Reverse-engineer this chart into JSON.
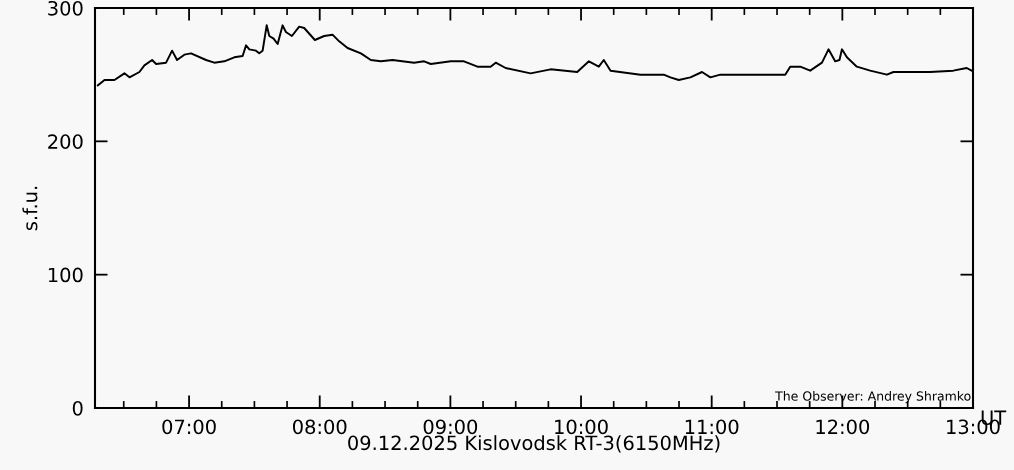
{
  "chart_data": {
    "type": "line",
    "xlabel": "09.12.2025 Kislovodsk RT-3(6150MHz)",
    "ylabel": "s.f.u.",
    "annotations": [
      "UT",
      "The Observer: Andrey Shramko"
    ],
    "xlim": [
      6.28,
      13
    ],
    "ylim": [
      0,
      300
    ],
    "xticks": [
      {
        "value": 6.5,
        "label": null
      },
      {
        "value": 6.75,
        "label": null
      },
      {
        "value": 7,
        "label": "07:00"
      },
      {
        "value": 7.25,
        "label": null
      },
      {
        "value": 7.5,
        "label": null
      },
      {
        "value": 7.75,
        "label": null
      },
      {
        "value": 8,
        "label": "08:00"
      },
      {
        "value": 8.25,
        "label": null
      },
      {
        "value": 8.5,
        "label": null
      },
      {
        "value": 8.75,
        "label": null
      },
      {
        "value": 9,
        "label": "09:00"
      },
      {
        "value": 9.25,
        "label": null
      },
      {
        "value": 9.5,
        "label": null
      },
      {
        "value": 9.75,
        "label": null
      },
      {
        "value": 10,
        "label": "10:00"
      },
      {
        "value": 10.25,
        "label": null
      },
      {
        "value": 10.5,
        "label": null
      },
      {
        "value": 10.75,
        "label": null
      },
      {
        "value": 11,
        "label": "11:00"
      },
      {
        "value": 11.25,
        "label": null
      },
      {
        "value": 11.5,
        "label": null
      },
      {
        "value": 11.75,
        "label": null
      },
      {
        "value": 12,
        "label": "12:00"
      },
      {
        "value": 12.25,
        "label": null
      },
      {
        "value": 12.5,
        "label": null
      },
      {
        "value": 12.75,
        "label": null
      },
      {
        "value": 13,
        "label": "13:00"
      }
    ],
    "yticks": [
      0,
      100,
      200,
      300
    ],
    "grid": false,
    "legend": false,
    "marker": "none",
    "line_style": "solid",
    "series": [
      {
        "color": "#000000",
        "x": [
          6.302,
          6.353,
          6.429,
          6.505,
          6.544,
          6.62,
          6.658,
          6.717,
          6.748,
          6.824,
          6.87,
          6.908,
          6.964,
          7.015,
          7.13,
          7.193,
          7.27,
          7.346,
          7.41,
          7.436,
          7.461,
          7.512,
          7.537,
          7.563,
          7.594,
          7.614,
          7.647,
          7.678,
          7.716,
          7.741,
          7.787,
          7.843,
          7.881,
          7.963,
          8.034,
          8.098,
          8.149,
          8.213,
          8.315,
          8.391,
          8.468,
          8.557,
          8.722,
          8.799,
          8.85,
          9.003,
          9.104,
          9.207,
          9.308,
          9.347,
          9.423,
          9.614,
          9.767,
          9.971,
          10.06,
          10.136,
          10.174,
          10.226,
          10.455,
          10.633,
          10.684,
          10.748,
          10.837,
          10.926,
          10.99,
          11.066,
          11.321,
          11.563,
          11.601,
          11.678,
          11.754,
          11.844,
          11.894,
          11.945,
          11.978,
          11.997,
          12.035,
          12.111,
          12.213,
          12.341,
          12.391,
          12.671,
          12.849,
          12.952,
          12.99
        ],
        "values": [
          242,
          246,
          246,
          251,
          248,
          252,
          257,
          261,
          258,
          259,
          268,
          261,
          265,
          266,
          261,
          259,
          260,
          263,
          264,
          272,
          269,
          268,
          266,
          268,
          287,
          279,
          277,
          273,
          287,
          282,
          279,
          286,
          285,
          276,
          279,
          280,
          275,
          270,
          266,
          261,
          260,
          261,
          259,
          260,
          258,
          260,
          260,
          256,
          256,
          259,
          255,
          251,
          254,
          252,
          260,
          256,
          261,
          253,
          250,
          250,
          248,
          246,
          248,
          252,
          248,
          250,
          250,
          250,
          256,
          256,
          253,
          259,
          269,
          260,
          261,
          269,
          263,
          256,
          253,
          250,
          252,
          252,
          253,
          255,
          253
        ]
      }
    ]
  }
}
